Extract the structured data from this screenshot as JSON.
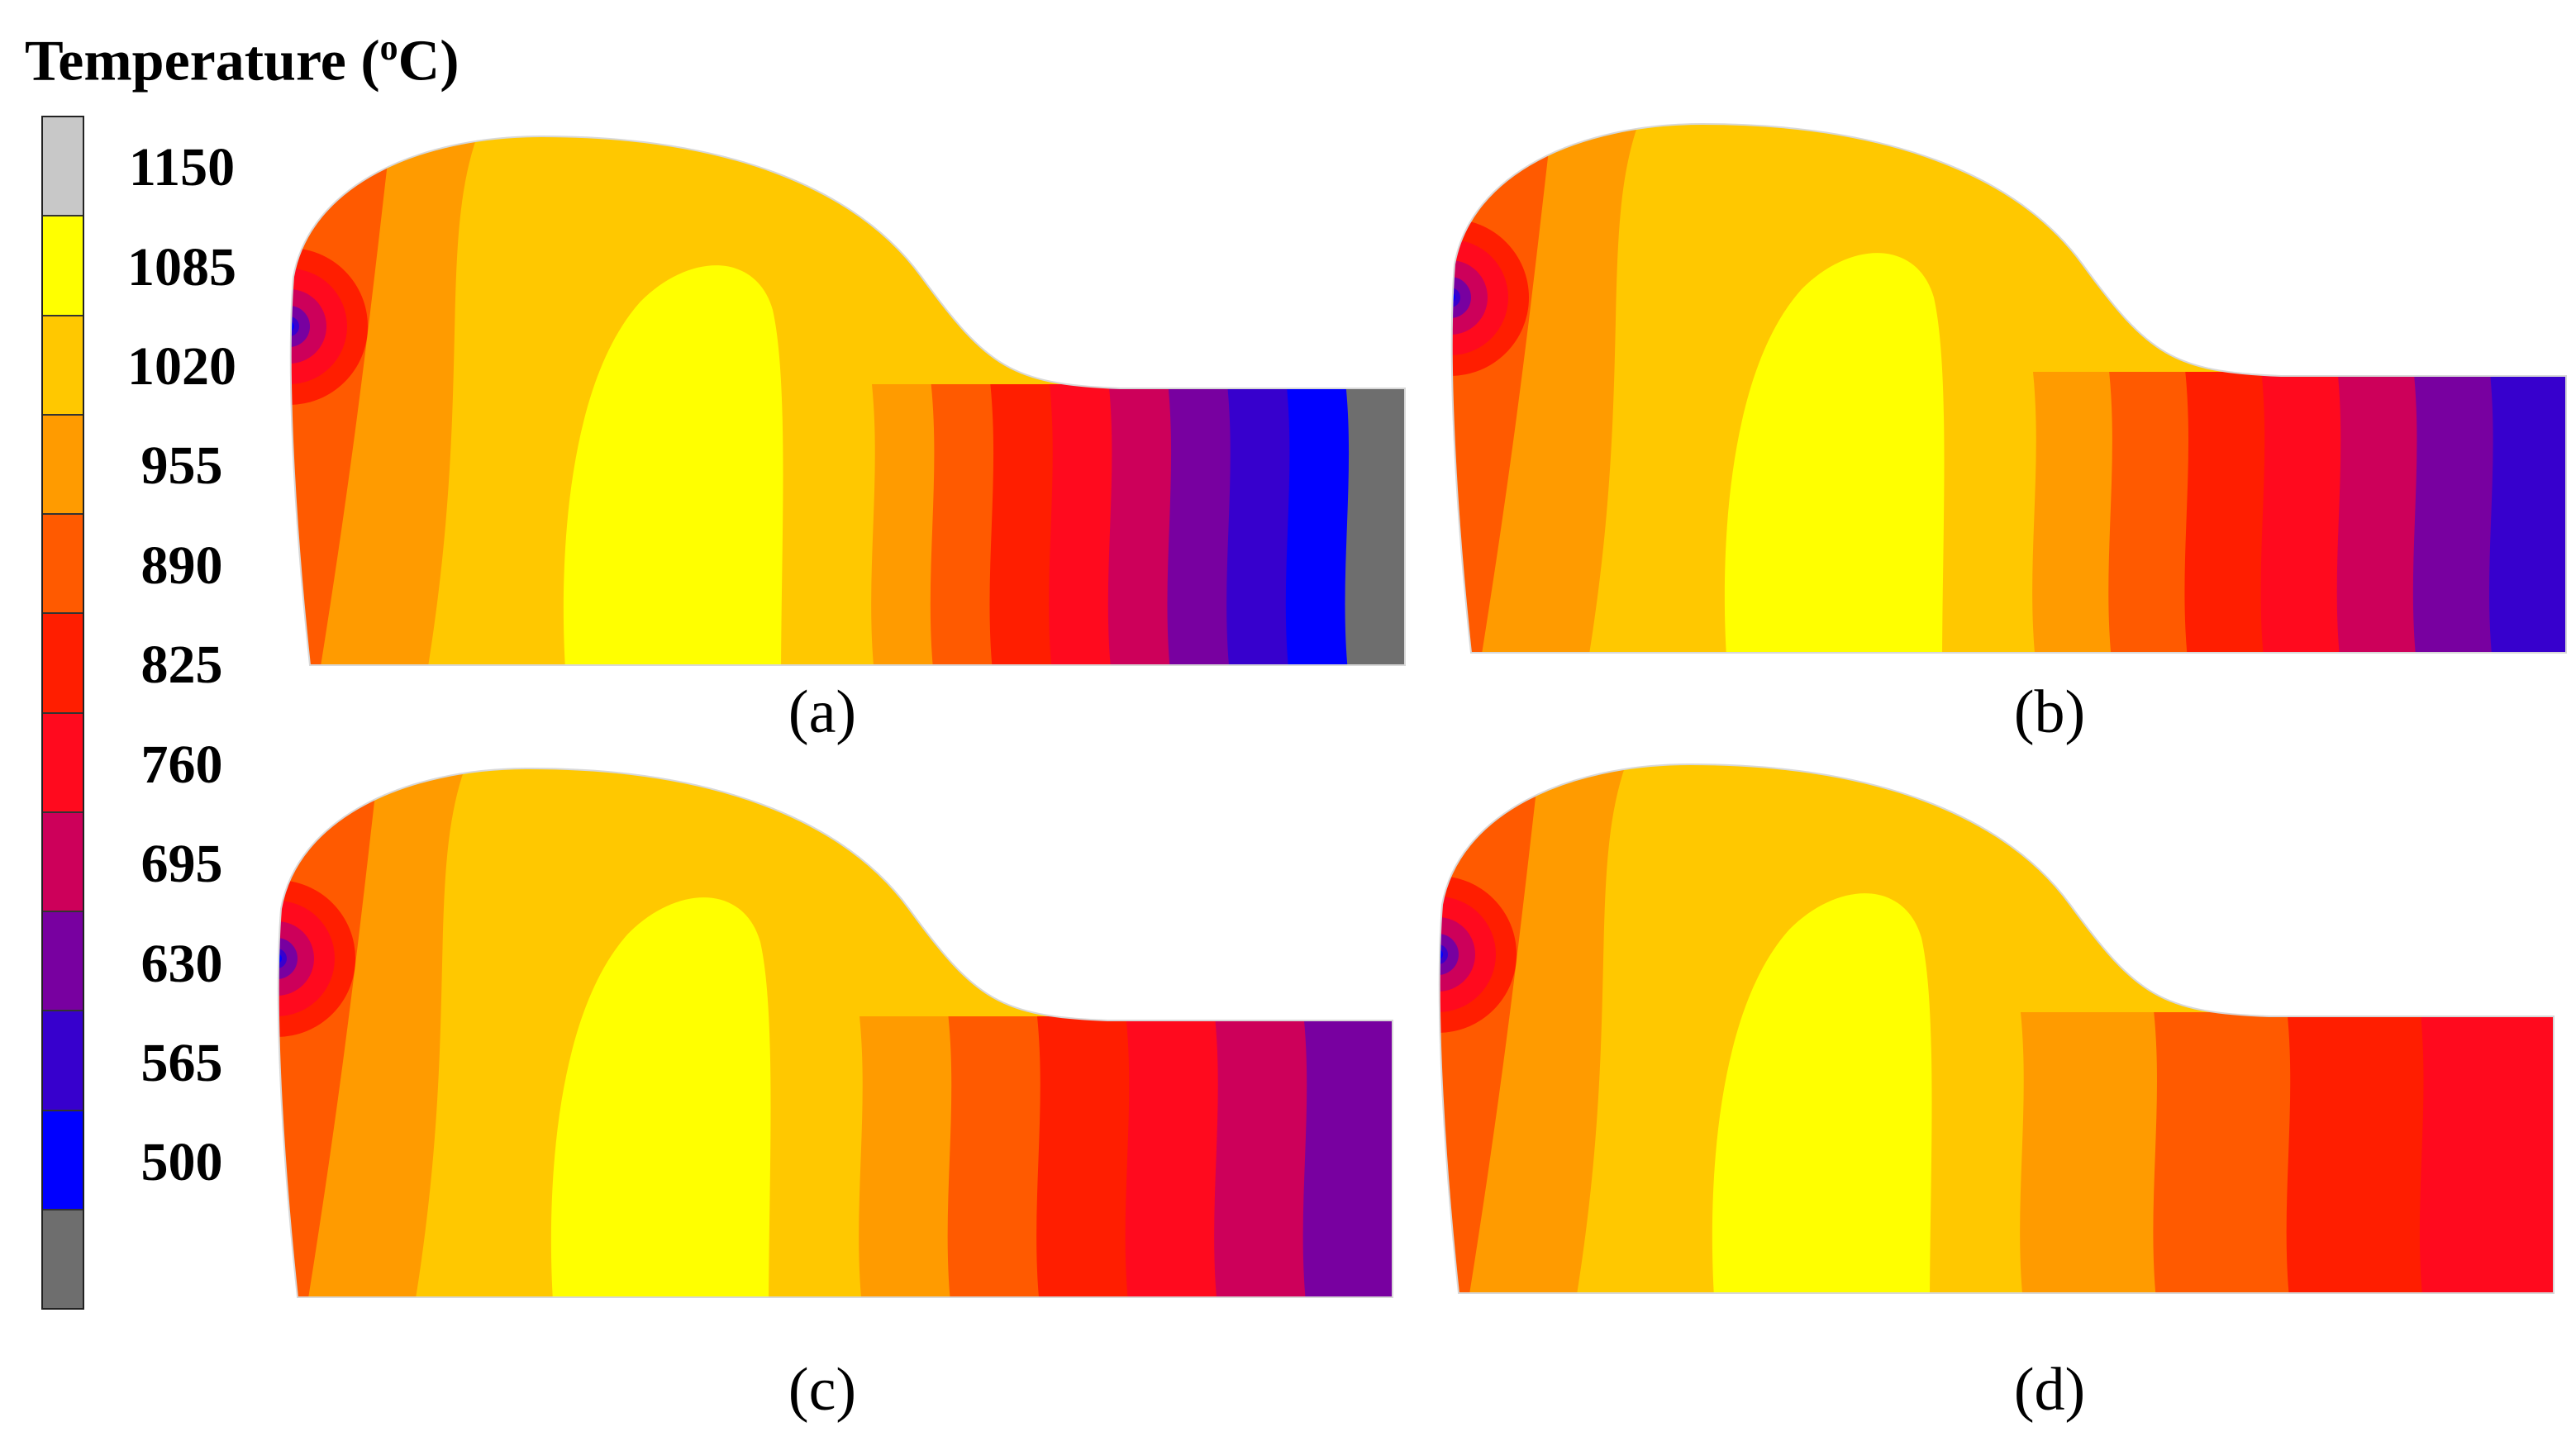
{
  "legend": {
    "title": "Temperature (",
    "title_sup": "o",
    "title_end": "C)",
    "levels": [
      "1150",
      "1085",
      "1020",
      "955",
      "890",
      "825",
      "760",
      "695",
      "630",
      "565",
      "500"
    ],
    "colors": [
      "#c8c8c8",
      "#ffff00",
      "#ffc800",
      "#ff9b00",
      "#ff5a00",
      "#ff1e00",
      "#ff0a1e",
      "#cd005a",
      "#7800a0",
      "#3700cd",
      "#0000ff",
      "#6e6e6e"
    ]
  },
  "panels": [
    {
      "label": "(a)",
      "right_colors": [
        "#ff9b00",
        "#ff5a00",
        "#ff1e00",
        "#ff0a1e",
        "#cd005a",
        "#7800a0",
        "#3700cd",
        "#0000ff",
        "#6e6e6e"
      ]
    },
    {
      "label": "(b)",
      "right_colors": [
        "#ff9b00",
        "#ff5a00",
        "#ff1e00",
        "#ff0a1e",
        "#cd005a",
        "#7800a0",
        "#3700cd"
      ]
    },
    {
      "label": "(c)",
      "right_colors": [
        "#ff9b00",
        "#ff5a00",
        "#ff1e00",
        "#ff0a1e",
        "#cd005a",
        "#7800a0"
      ]
    },
    {
      "label": "(d)",
      "right_colors": [
        "#ff9b00",
        "#ff5a00",
        "#ff1e00",
        "#ff0a1e"
      ]
    }
  ]
}
